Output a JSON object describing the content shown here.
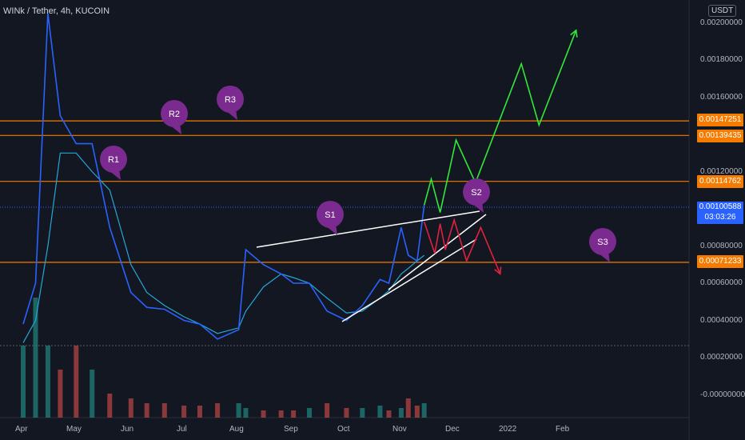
{
  "header": {
    "title": "WINk / Tether, 4h, KUCOIN",
    "currency": "USDT"
  },
  "price_axis": {
    "ticks": [
      "0.00200000",
      "0.00180000",
      "0.00160000",
      "0.00120000",
      "0.00080000",
      "0.00060000",
      "0.00040000",
      "0.00020000",
      "-0.00000000"
    ],
    "level_badges": [
      "0.00147251",
      "0.00139435",
      "0.00114762",
      "0.00071233"
    ],
    "current_price": "0.00100588",
    "countdown": "03:03:26"
  },
  "time_axis": {
    "ticks": [
      "Apr",
      "May",
      "Jun",
      "Jul",
      "Aug",
      "Sep",
      "Oct",
      "Nov",
      "Dec",
      "2022",
      "Feb"
    ]
  },
  "annotations": [
    "R1",
    "R2",
    "R3",
    "S1",
    "S2",
    "S3"
  ],
  "colors": {
    "background": "#131722",
    "price_line": "#2962ff",
    "ma_line": "#26a5d8",
    "level_line": "#f57c00",
    "bull_projection": "#33e838",
    "bear_projection": "#e0213f",
    "bubble": "#7b2a8f"
  },
  "chart_data": {
    "type": "line",
    "title": "WINk / Tether, 4h, KUCOIN",
    "x": [
      "2021-04-01",
      "2021-04-08",
      "2021-04-15",
      "2021-04-22",
      "2021-05-01",
      "2021-05-10",
      "2021-05-20",
      "2021-06-01",
      "2021-06-10",
      "2021-06-20",
      "2021-07-01",
      "2021-07-10",
      "2021-07-20",
      "2021-08-01",
      "2021-08-05",
      "2021-08-15",
      "2021-08-25",
      "2021-09-01",
      "2021-09-10",
      "2021-09-20",
      "2021-10-01",
      "2021-10-10",
      "2021-10-20",
      "2021-10-25",
      "2021-11-01",
      "2021-11-05",
      "2021-11-10",
      "2021-11-14"
    ],
    "series": [
      {
        "values": [
          0.00038,
          0.0006,
          0.00205,
          0.0015,
          0.00135,
          0.00135,
          0.0009,
          0.00055,
          0.00047,
          0.00046,
          0.0004,
          0.00038,
          0.0003,
          0.00035,
          0.00078,
          0.0007,
          0.00065,
          0.0006,
          0.0006,
          0.00045,
          0.0004,
          0.00048,
          0.00062,
          0.0006,
          0.0009,
          0.00075,
          0.00072,
          0.00102
        ]
      },
      {
        "values": [
          0.00028,
          0.0004,
          0.0008,
          0.0013,
          0.0013,
          0.0012,
          0.0011,
          0.0007,
          0.00055,
          0.00048,
          0.00042,
          0.00038,
          0.00033,
          0.00036,
          0.00045,
          0.00058,
          0.00065,
          0.00063,
          0.0006,
          0.00052,
          0.00044,
          0.00045,
          0.00052,
          0.00056,
          0.00065,
          0.00068,
          0.00072,
          0.00075
        ]
      }
    ],
    "volume": [
      3e-05,
      5e-05,
      3e-05,
      2e-05,
      3e-05,
      2e-05,
      1e-05,
      8e-06,
      6e-06,
      6e-06,
      5e-06,
      5e-06,
      6e-06,
      6e-06,
      4e-06,
      3e-06,
      3e-06,
      3e-06,
      4e-06,
      6e-06,
      4e-06,
      4e-06,
      5e-06,
      3e-06,
      4e-06,
      8e-06,
      5e-06,
      6e-06
    ],
    "levels": [
      0.00147251,
      0.00139435,
      0.00114762,
      0.00071233
    ],
    "bull_projection": [
      [
        "2021-11-14",
        0.00102
      ],
      [
        "2021-11-18",
        0.00116
      ],
      [
        "2021-11-23",
        0.00098
      ],
      [
        "2021-12-02",
        0.00137
      ],
      [
        "2021-12-13",
        0.00114
      ],
      [
        "2022-01-08",
        0.00178
      ],
      [
        "2022-01-18",
        0.00145
      ],
      [
        "2022-02-08",
        0.00196
      ]
    ],
    "bear_projection": [
      [
        "2021-11-14",
        0.00093
      ],
      [
        "2021-11-20",
        0.00076
      ],
      [
        "2021-11-23",
        0.00092
      ],
      [
        "2021-11-26",
        0.00078
      ],
      [
        "2021-12-01",
        0.00094
      ],
      [
        "2021-12-08",
        0.00072
      ],
      [
        "2021-12-16",
        0.0009
      ],
      [
        "2021-12-27",
        0.00065
      ]
    ],
    "ylim": [
      -5e-05,
      0.00205
    ]
  }
}
